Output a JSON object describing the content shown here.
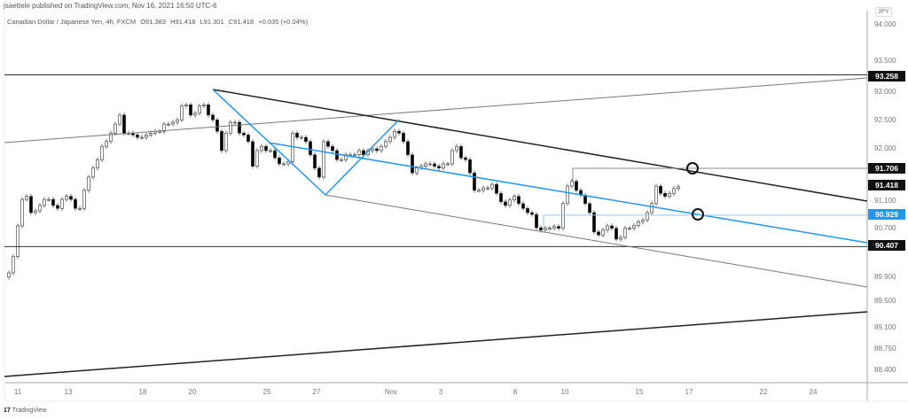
{
  "header": {
    "published": "jsaettele published on TradingView.com, Nov 16, 2021 16:50 UTC-6",
    "symbol": "Canadian Dollar / Japanese Yen, 4h, FXCM",
    "open": "O91.383",
    "high": "H91.418",
    "low": "L91.301",
    "close": "C91.418",
    "change": "+0.035 (+0.04%)"
  },
  "footer": {
    "logo": "TradingView"
  },
  "chart_data": {
    "type": "candlestick",
    "symbol": "CADJPY",
    "interval": "4h",
    "currency": "JPY",
    "grid": false,
    "y_ticks": [
      "94.000",
      "93.500",
      "93.000",
      "92.500",
      "92.000",
      "91.100",
      "90.700",
      "89.900",
      "89.500",
      "89.100",
      "88.750",
      "88.400"
    ],
    "x_ticks": [
      "11",
      "13",
      "18",
      "20",
      "25",
      "27",
      "Nov",
      "3",
      "8",
      "10",
      "15",
      "17",
      "22",
      "24"
    ],
    "price_labels": [
      {
        "value": "93.258",
        "color": "#000000"
      },
      {
        "value": "91.706",
        "color": "#000000"
      },
      {
        "value": "91.418",
        "color": "#000000"
      },
      {
        "value": "90.929",
        "color": "#2196f3"
      },
      {
        "value": "90.407",
        "color": "#000000"
      }
    ],
    "horizontal_levels": [
      93.258,
      91.706,
      90.929,
      90.407
    ],
    "up_color": "#ffffff",
    "down_color": "#000000",
    "trend_color": "#2196f3",
    "first_open": 89.9,
    "closes": [
      89.97,
      90.24,
      90.75,
      91.19,
      91.24,
      90.97,
      91.0,
      91.09,
      91.19,
      91.19,
      91.09,
      91.04,
      91.19,
      91.24,
      91.19,
      91.04,
      91.04,
      91.34,
      91.56,
      91.71,
      91.85,
      92.07,
      92.15,
      92.29,
      92.44,
      92.59,
      92.29,
      92.29,
      92.26,
      92.22,
      92.22,
      92.26,
      92.29,
      92.32,
      92.32,
      92.44,
      92.44,
      92.47,
      92.51,
      92.74,
      92.76,
      92.59,
      92.62,
      92.74,
      92.76,
      92.59,
      92.51,
      92.32,
      92.0,
      92.29,
      92.47,
      92.47,
      92.29,
      92.26,
      92.15,
      91.74,
      92.0,
      92.07,
      92.0,
      92.0,
      91.88,
      91.78,
      91.78,
      91.82,
      92.29,
      92.22,
      92.22,
      92.15,
      91.93,
      91.71,
      91.56,
      92.15,
      92.07,
      92.0,
      91.85,
      91.85,
      91.93,
      91.93,
      91.93,
      92.0,
      91.93,
      92.0,
      92.03,
      92.0,
      92.07,
      92.15,
      92.22,
      92.32,
      92.29,
      92.15,
      91.93,
      91.63,
      91.71,
      91.74,
      91.78,
      91.78,
      91.74,
      91.71,
      91.78,
      91.78,
      92.0,
      92.07,
      91.88,
      91.85,
      91.63,
      91.34,
      91.34,
      91.38,
      91.38,
      91.44,
      91.29,
      91.15,
      91.09,
      91.18,
      91.24,
      91.12,
      91.04,
      90.97,
      90.94,
      90.72,
      90.68,
      90.71,
      90.71,
      90.74,
      90.71,
      91.12,
      91.41,
      91.49,
      91.34,
      91.26,
      91.12,
      90.97,
      90.65,
      90.6,
      90.68,
      90.75,
      90.71,
      90.53,
      90.56,
      90.71,
      90.71,
      90.76,
      90.82,
      90.85,
      90.97,
      91.12,
      91.41,
      91.29,
      91.24,
      91.29,
      91.37,
      91.4
    ]
  }
}
